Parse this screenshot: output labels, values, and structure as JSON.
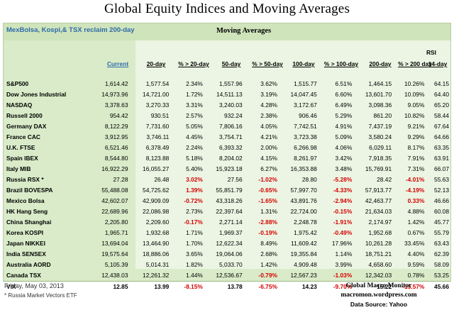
{
  "title": "Global Equity Indices and Moving Averages",
  "header": {
    "left_note": "MexBolsa, Kospi,& TSX  reclaim 200-day",
    "moving_averages": "Moving Averages",
    "rsi_line1": "RSI",
    "columns": [
      "Current",
      "20-day",
      "% > 20-day",
      "50-day",
      "% > 50-day",
      "100-day",
      "% > 100-day",
      "200-day",
      "% > 200 day",
      "14-day"
    ]
  },
  "rows": [
    {
      "name": "S&P500",
      "cur": "1,614.42",
      "d20": "1,577.54",
      "p20": "2.34%",
      "d50": "1,557.96",
      "p50": "3.62%",
      "d100": "1,515.77",
      "p100": "6.51%",
      "d200": "1,464.15",
      "p200": "10.26%",
      "rsi": "64.15"
    },
    {
      "name": "Dow Jones Industrial",
      "cur": "14,973.96",
      "d20": "14,721.00",
      "p20": "1.72%",
      "d50": "14,511.13",
      "p50": "3.19%",
      "d100": "14,047.45",
      "p100": "6.60%",
      "d200": "13,601.70",
      "p200": "10.09%",
      "rsi": "64.40"
    },
    {
      "name": "NASDAQ",
      "cur": "3,378.63",
      "d20": "3,270.33",
      "p20": "3.31%",
      "d50": "3,240.03",
      "p50": "4.28%",
      "d100": "3,172.67",
      "p100": "6.49%",
      "d200": "3,098.36",
      "p200": "9.05%",
      "rsi": "65.20"
    },
    {
      "name": "Russell 2000",
      "cur": "954.42",
      "d20": "930.51",
      "p20": "2.57%",
      "d50": "932.24",
      "p50": "2.38%",
      "d100": "906.46",
      "p100": "5.29%",
      "d200": "861.20",
      "p200": "10.82%",
      "rsi": "58.44"
    },
    {
      "name": "Germany DAX",
      "cur": "8,122.29",
      "d20": "7,731.60",
      "p20": "5.05%",
      "d50": "7,806.16",
      "p50": "4.05%",
      "d100": "7,742.51",
      "p100": "4.91%",
      "d200": "7,437.19",
      "p200": "9.21%",
      "rsi": "67.64"
    },
    {
      "name": "France CAC",
      "cur": "3,912.95",
      "d20": "3,746.11",
      "p20": "4.45%",
      "d50": "3,754.71",
      "p50": "4.21%",
      "d100": "3,723.38",
      "p100": "5.09%",
      "d200": "3,580.24",
      "p200": "9.29%",
      "rsi": "64.66"
    },
    {
      "name": "U.K. FTSE",
      "cur": "6,521.46",
      "d20": "6,378.49",
      "p20": "2.24%",
      "d50": "6,393.32",
      "p50": "2.00%",
      "d100": "6,266.98",
      "p100": "4.06%",
      "d200": "6,029.11",
      "p200": "8.17%",
      "rsi": "63.35"
    },
    {
      "name": "Spain IBEX",
      "cur": "8,544.80",
      "d20": "8,123.88",
      "p20": "5.18%",
      "d50": "8,204.02",
      "p50": "4.15%",
      "d100": "8,261.97",
      "p100": "3.42%",
      "d200": "7,918.35",
      "p200": "7.91%",
      "rsi": "63.91"
    },
    {
      "name": "Italy  MIB",
      "cur": "16,922.29",
      "d20": "16,055.27",
      "p20": "5.40%",
      "d50": "15,923.18",
      "p50": "6.27%",
      "d100": "16,353.88",
      "p100": "3.48%",
      "d200": "15,769.91",
      "p200": "7.31%",
      "rsi": "66.07"
    },
    {
      "name": "Russia RSX *",
      "cur": "27.28",
      "d20": "26.48",
      "p20": "3.02%",
      "d50": "27.56",
      "p50": "-1.02%",
      "d100": "28.80",
      "p100": "-5.28%",
      "d200": "28.42",
      "p200": "-4.01%",
      "rsi": "55.63"
    },
    {
      "name": "Brazil BOVESPA",
      "cur": "55,488.08",
      "d20": "54,725.62",
      "p20": "1.39%",
      "d50": "55,851.79",
      "p50": "-0.65%",
      "d100": "57,997.70",
      "p100": "-4.33%",
      "d200": "57,913.77",
      "p200": "-4.19%",
      "rsi": "52.13"
    },
    {
      "name": "Mexico Bolsa",
      "cur": "42,602.07",
      "d20": "42,909.09",
      "p20": "-0.72%",
      "d50": "43,318.26",
      "p50": "-1.65%",
      "d100": "43,891.76",
      "p100": "-2.94%",
      "d200": "42,463.77",
      "p200": "0.33%",
      "rsi": "46.66"
    },
    {
      "name": "HK  Hang Seng",
      "cur": "22,689.96",
      "d20": "22,086.98",
      "p20": "2.73%",
      "d50": "22,397.64",
      "p50": "1.31%",
      "d100": "22,724.00",
      "p100": "-0.15%",
      "d200": "21,634.03",
      "p200": "4.88%",
      "rsi": "60.08"
    },
    {
      "name": "China Shanghai",
      "cur": "2,205.80",
      "d20": "2,209.60",
      "p20": "-0.17%",
      "d50": "2,271.14",
      "p50": "-2.88%",
      "d100": "2,248.78",
      "p100": "-1.91%",
      "d200": "2,174.97",
      "p200": "1.42%",
      "rsi": "45.77"
    },
    {
      "name": "Korea KOSPI",
      "cur": "1,965.71",
      "d20": "1,932.68",
      "p20": "1.71%",
      "d50": "1,969.37",
      "p50": "-0.19%",
      "d100": "1,975.42",
      "p100": "-0.49%",
      "d200": "1,952.68",
      "p200": "0.67%",
      "rsi": "55.79"
    },
    {
      "name": "Japan NIKKEI",
      "cur": "13,694.04",
      "d20": "13,464.90",
      "p20": "1.70%",
      "d50": "12,622.34",
      "p50": "8.49%",
      "d100": "11,609.42",
      "p100": "17.96%",
      "d200": "10,261.28",
      "p200": "33.45%",
      "rsi": "63.43"
    },
    {
      "name": "India SENSEX",
      "cur": "19,575.64",
      "d20": "18,886.06",
      "p20": "3.65%",
      "d50": "19,064.06",
      "p50": "2.68%",
      "d100": "19,355.84",
      "p100": "1.14%",
      "d200": "18,751.21",
      "p200": "4.40%",
      "rsi": "62.39"
    },
    {
      "name": "Australia AORD",
      "cur": "5,105.39",
      "d20": "5,014.31",
      "p20": "1.82%",
      "d50": "5,033.70",
      "p50": "1.42%",
      "d100": "4,909.48",
      "p100": "3.99%",
      "d200": "4,658.60",
      "p200": "9.59%",
      "rsi": "58.09"
    },
    {
      "name": "Canada TSX",
      "cur": "12,438.03",
      "d20": "12,261.32",
      "p20": "1.44%",
      "d50": "12,536.67",
      "p50": "-0.79%",
      "d100": "12,567.23",
      "p100": "-1.03%",
      "d200": "12,342.03",
      "p200": "0.78%",
      "rsi": "53.25"
    },
    {
      "name": "VIX",
      "cur": "12.85",
      "d20": "13.99",
      "p20": "-8.15%",
      "d50": "13.78",
      "p50": "-6.75%",
      "d100": "14.23",
      "p100": "-9.70%",
      "d200": "15.22",
      "p200": "-15.57%",
      "rsi": "45.66"
    }
  ],
  "footer": {
    "date": "Friday, May 03, 2013",
    "note": "* Russia Market Vectors ETF",
    "brand": "Global Macro Monitor",
    "site": "macromon.wordpress.com",
    "source": "Data Source: Yahoo"
  },
  "colors": {
    "negative": "#d40000",
    "accent_blue": "#2e6aa8",
    "panel_green": "#d9ebc8"
  }
}
